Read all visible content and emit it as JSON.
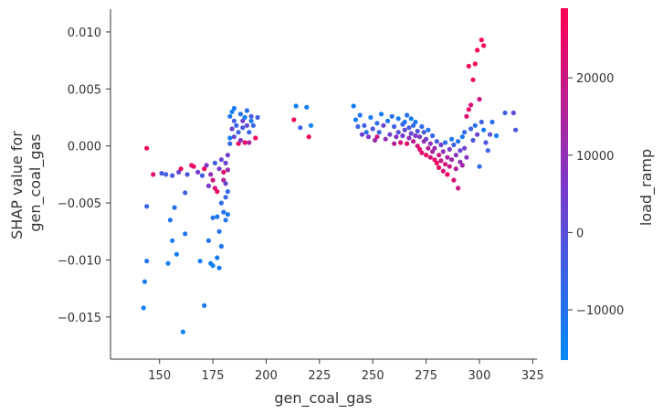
{
  "chart_data": {
    "type": "scatter",
    "title": "",
    "xlabel": "gen_coal_gas",
    "ylabel_lines": [
      "SHAP value for",
      "gen_coal_gas"
    ],
    "xlim": [
      127,
      327
    ],
    "ylim": [
      -0.0187,
      0.012
    ],
    "x_ticks": [
      150,
      175,
      200,
      225,
      250,
      275,
      300,
      325
    ],
    "y_ticks": [
      -0.015,
      -0.01,
      -0.005,
      0.0,
      0.005,
      0.01
    ],
    "y_tick_labels": [
      "−0.015",
      "−0.010",
      "−0.005",
      "0.000",
      "0.005",
      "0.010"
    ],
    "grid": false,
    "colorbar": {
      "label": "load_ramp",
      "range": [
        -16500,
        29000
      ],
      "ticks": [
        -10000,
        0,
        10000,
        20000
      ],
      "tick_labels": [
        "−10000",
        "0",
        "10000",
        "20000"
      ],
      "colors": [
        "#008afb",
        "#7c39c9",
        "#ff0052"
      ]
    },
    "points": [
      [
        142.5,
        -0.0142,
        -14000
      ],
      [
        143,
        -0.0119,
        -12000
      ],
      [
        144,
        -0.0101,
        -10000
      ],
      [
        144,
        -0.0053,
        -6000
      ],
      [
        144,
        -0.0002,
        27000
      ],
      [
        147,
        -0.0025,
        24000
      ],
      [
        151,
        -0.0024,
        -3000
      ],
      [
        153,
        -0.0025,
        -5000
      ],
      [
        154,
        -0.0103,
        -13000
      ],
      [
        155,
        -0.0065,
        -11000
      ],
      [
        156,
        -0.0083,
        -12000
      ],
      [
        156,
        -0.0026,
        -2000
      ],
      [
        157,
        -0.0054,
        -10000
      ],
      [
        158,
        -0.0095,
        -13000
      ],
      [
        159,
        -0.0023,
        2000
      ],
      [
        160,
        -0.002,
        26000
      ],
      [
        161,
        -0.0163,
        -14500
      ],
      [
        162,
        -0.0041,
        -4000
      ],
      [
        162,
        -0.0077,
        -11000
      ],
      [
        163,
        -0.0025,
        -3000
      ],
      [
        165,
        -0.0017,
        24000
      ],
      [
        166,
        -0.0018,
        26000
      ],
      [
        168,
        -0.0023,
        5000
      ],
      [
        169,
        -0.0101,
        -13000
      ],
      [
        170,
        -0.0026,
        -4000
      ],
      [
        171,
        -0.014,
        -12000
      ],
      [
        171,
        -0.002,
        27000
      ],
      [
        172,
        -0.0017,
        8000
      ],
      [
        173,
        -0.0083,
        -11000
      ],
      [
        173,
        -0.0035,
        6000
      ],
      [
        174,
        -0.0103,
        -13000
      ],
      [
        174,
        -0.0025,
        10000
      ],
      [
        175,
        -0.0063,
        -10000
      ],
      [
        175,
        -0.003,
        20000
      ],
      [
        175,
        -0.0105,
        -14000
      ],
      [
        176,
        -0.0037,
        22000
      ],
      [
        176,
        -0.0015,
        -4000
      ],
      [
        177,
        -0.0098,
        -12000
      ],
      [
        177,
        -0.0062,
        -11000
      ],
      [
        177,
        -0.004,
        26000
      ],
      [
        178,
        -0.0107,
        -13000
      ],
      [
        178,
        -0.002,
        5000
      ],
      [
        178,
        -0.0075,
        -10000
      ],
      [
        179,
        -0.0088,
        -11000
      ],
      [
        179,
        -0.005,
        -8000
      ],
      [
        179,
        -0.0012,
        3000
      ],
      [
        180,
        -0.0058,
        -9000
      ],
      [
        180,
        -0.003,
        15000
      ],
      [
        180,
        -0.0023,
        25000
      ],
      [
        181,
        -0.0045,
        -6000
      ],
      [
        181,
        -0.0065,
        -10000
      ],
      [
        181,
        -0.0015,
        4000
      ],
      [
        181,
        -0.0033,
        2000
      ],
      [
        182,
        -0.006,
        -12000
      ],
      [
        182,
        -0.0008,
        5000
      ],
      [
        182,
        -0.004,
        -7000
      ],
      [
        182,
        -0.0021,
        12000
      ],
      [
        183,
        0.0002,
        -7000
      ],
      [
        183,
        0.0007,
        -13000
      ],
      [
        183,
        0.0026,
        -11000
      ],
      [
        184,
        0.0015,
        3000
      ],
      [
        184,
        0.003,
        -14000
      ],
      [
        185,
        0.0022,
        -4000
      ],
      [
        185,
        0.0008,
        2000
      ],
      [
        185,
        0.0033,
        -12000
      ],
      [
        186,
        0.0018,
        -6000
      ],
      [
        187,
        0.0002,
        26000
      ],
      [
        187,
        0.0012,
        -5000
      ],
      [
        188,
        0.0005,
        8000
      ],
      [
        188,
        0.0028,
        -10000
      ],
      [
        189,
        0.0016,
        -3000
      ],
      [
        189,
        0.0022,
        4000
      ],
      [
        190,
        0.0003,
        25000
      ],
      [
        190,
        0.0025,
        -12000
      ],
      [
        191,
        0.0018,
        2000
      ],
      [
        191,
        0.0031,
        -9000
      ],
      [
        192,
        0.0012,
        -7000
      ],
      [
        192,
        0.0003,
        15000
      ],
      [
        193,
        0.0022,
        -11000
      ],
      [
        193,
        0.0026,
        -3000
      ],
      [
        194,
        0.0018,
        -6000
      ],
      [
        195,
        0.0007,
        27000
      ],
      [
        196,
        0.0025,
        -4000
      ],
      [
        213,
        0.0023,
        26000
      ],
      [
        214,
        0.0035,
        -14000
      ],
      [
        216,
        0.0016,
        -5000
      ],
      [
        219,
        0.0034,
        -13000
      ],
      [
        220,
        0.0008,
        27000
      ],
      [
        221,
        0.0018,
        -14000
      ],
      [
        241,
        0.0035,
        -13000
      ],
      [
        242,
        0.0023,
        -12000
      ],
      [
        243,
        0.0017,
        -6000
      ],
      [
        244,
        0.0027,
        -10000
      ],
      [
        245,
        0.001,
        3000
      ],
      [
        246,
        0.0018,
        -5000
      ],
      [
        247,
        0.0012,
        -8000
      ],
      [
        248,
        0.0008,
        6000
      ],
      [
        249,
        0.0025,
        -12000
      ],
      [
        250,
        0.0015,
        -3000
      ],
      [
        251,
        0.0005,
        12000
      ],
      [
        252,
        0.002,
        -9000
      ],
      [
        252,
        0.0008,
        20000
      ],
      [
        253,
        0.0012,
        -6000
      ],
      [
        254,
        0.0028,
        -13000
      ],
      [
        255,
        0.0018,
        2000
      ],
      [
        256,
        0.0006,
        10000
      ],
      [
        257,
        0.0022,
        -11000
      ],
      [
        258,
        0.001,
        4000
      ],
      [
        259,
        0.0026,
        -8000
      ],
      [
        260,
        0.0002,
        15000
      ],
      [
        260,
        0.0017,
        -4000
      ],
      [
        261,
        0.0008,
        8000
      ],
      [
        262,
        0.0024,
        -12000
      ],
      [
        262,
        0.0012,
        0
      ],
      [
        263,
        0.0003,
        22000
      ],
      [
        264,
        0.0019,
        -6000
      ],
      [
        264,
        0.0009,
        5000
      ],
      [
        265,
        0.0021,
        -10000
      ],
      [
        265,
        0.0014,
        1000
      ],
      [
        266,
        0.0002,
        24000
      ],
      [
        266,
        0.0027,
        -9000
      ],
      [
        267,
        0.0007,
        9000
      ],
      [
        267,
        0.0016,
        -3000
      ],
      [
        268,
        0.0011,
        3000
      ],
      [
        268,
        0.0024,
        -13000
      ],
      [
        269,
        0.0004,
        18000
      ],
      [
        269,
        0.0018,
        -7000
      ],
      [
        270,
        0.0009,
        6000
      ],
      [
        270,
        0.0021,
        -11000
      ],
      [
        271,
        0.0,
        21000
      ],
      [
        271,
        0.0013,
        -2000
      ],
      [
        272,
        -0.0003,
        25000
      ],
      [
        272,
        0.0008,
        7000
      ],
      [
        273,
        0.0017,
        -8000
      ],
      [
        273,
        -0.0006,
        23000
      ],
      [
        274,
        0.0004,
        11000
      ],
      [
        274,
        0.0012,
        -4000
      ],
      [
        275,
        -0.0008,
        26000
      ],
      [
        275,
        0.0006,
        4000
      ],
      [
        276,
        -0.0002,
        17000
      ],
      [
        276,
        0.0014,
        -10000
      ],
      [
        277,
        -0.001,
        22000
      ],
      [
        277,
        0.0002,
        9000
      ],
      [
        278,
        -0.0005,
        14000
      ],
      [
        278,
        0.0009,
        -6000
      ],
      [
        279,
        -0.0012,
        24000
      ],
      [
        279,
        -0.0002,
        12000
      ],
      [
        280,
        -0.0015,
        27000
      ],
      [
        280,
        0.0004,
        -3000
      ],
      [
        281,
        -0.0008,
        20000
      ],
      [
        281,
        -0.0019,
        25000
      ],
      [
        282,
        0.0001,
        5000
      ],
      [
        282,
        -0.0013,
        18000
      ],
      [
        283,
        -0.0022,
        23000
      ],
      [
        283,
        -0.0005,
        10000
      ],
      [
        284,
        -0.0016,
        21000
      ],
      [
        284,
        0.0003,
        -8000
      ],
      [
        285,
        -0.001,
        15000
      ],
      [
        285,
        -0.0025,
        26000
      ],
      [
        286,
        -0.0003,
        6000
      ],
      [
        286,
        -0.0018,
        19000
      ],
      [
        287,
        0.0006,
        -11000
      ],
      [
        287,
        -0.0012,
        12000
      ],
      [
        288,
        -0.003,
        22000
      ],
      [
        288,
        0.0001,
        -5000
      ],
      [
        289,
        -0.0008,
        8000
      ],
      [
        289,
        -0.002,
        16000
      ],
      [
        290,
        -0.0037,
        20000
      ],
      [
        290,
        0.0004,
        -9000
      ],
      [
        291,
        -0.0014,
        10000
      ],
      [
        291,
        -0.0004,
        2000
      ],
      [
        292,
        0.0008,
        -12000
      ],
      [
        292,
        -0.0017,
        13000
      ],
      [
        293,
        -0.0002,
        4000
      ],
      [
        293,
        0.0012,
        -7000
      ],
      [
        294,
        0.0026,
        24000
      ],
      [
        294,
        -0.001,
        8000
      ],
      [
        295,
        0.0032,
        25000
      ],
      [
        295,
        0.007,
        27000
      ],
      [
        296,
        0.0015,
        -6000
      ],
      [
        296,
        0.0036,
        22000
      ],
      [
        297,
        0.0005,
        -3000
      ],
      [
        297,
        0.0058,
        26000
      ],
      [
        298,
        0.0072,
        27000
      ],
      [
        298,
        0.0018,
        -10000
      ],
      [
        299,
        0.0084,
        28000
      ],
      [
        299,
        0.001,
        3000
      ],
      [
        300,
        0.0041,
        20000
      ],
      [
        300,
        -0.0018,
        -8000
      ],
      [
        301,
        0.0093,
        28500
      ],
      [
        301,
        0.0021,
        -5000
      ],
      [
        302,
        0.0088,
        27500
      ],
      [
        302,
        0.0014,
        -12000
      ],
      [
        303,
        0.0003,
        -2000
      ],
      [
        304,
        -0.0004,
        -6000
      ],
      [
        305,
        0.001,
        0
      ],
      [
        306,
        0.0021,
        -9000
      ],
      [
        308,
        0.0009,
        -13000
      ],
      [
        312,
        0.0029,
        -4000
      ],
      [
        316,
        0.0029,
        2000
      ],
      [
        317,
        0.0014,
        -3000
      ]
    ]
  }
}
